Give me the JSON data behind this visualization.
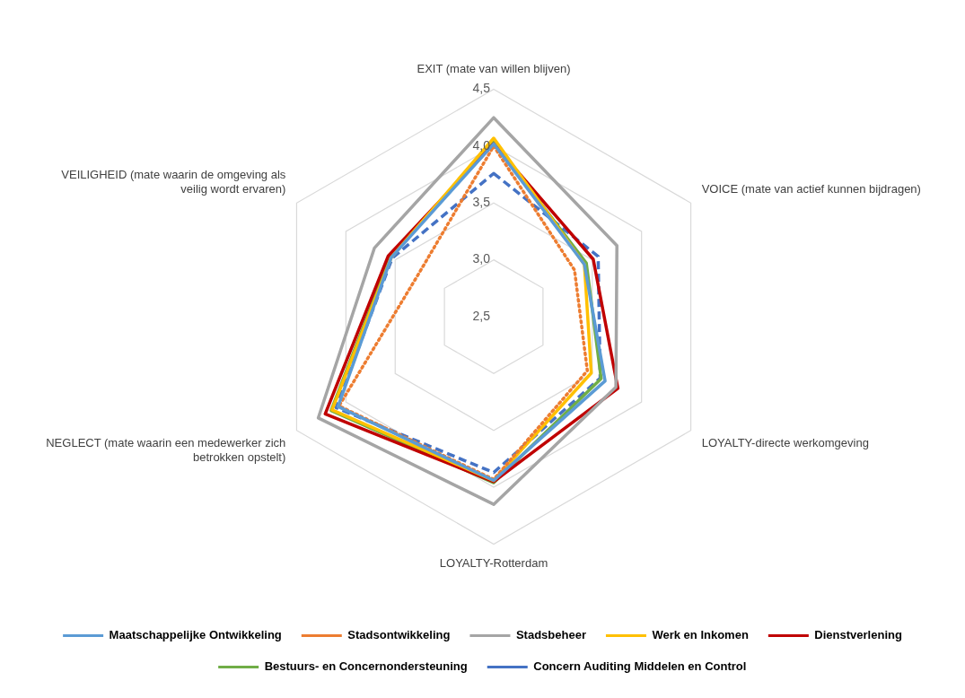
{
  "chart_data": {
    "type": "radar",
    "categories": [
      "EXIT (mate van willen blijven)",
      "VOICE (mate van actief kunnen bijdragen)",
      "LOYALTY-directe werkomgeving",
      "LOYALTY-Rotterdam",
      "NEGLECT (mate waarin een medewerker zich betrokken opstelt)",
      "VEILIGHEID (mate waarin de omgeving als veilig wordt ervaren)"
    ],
    "series": [
      {
        "name": "Maatschappelijke Ontwikkeling",
        "color": "#5b9bd5",
        "values": [
          4.02,
          3.42,
          3.63,
          3.94,
          4.08,
          3.54
        ]
      },
      {
        "name": "Stadsontwikkeling",
        "color": "#ed7d31",
        "line_style": "dotted",
        "values": [
          4.0,
          3.32,
          3.45,
          3.93,
          4.07,
          3.26
        ]
      },
      {
        "name": "Stadsbeheer",
        "color": "#a5a5a5",
        "values": [
          4.25,
          3.75,
          3.74,
          4.15,
          4.28,
          3.71
        ]
      },
      {
        "name": "Werk en Inkomen",
        "color": "#ffc000",
        "values": [
          4.07,
          3.42,
          3.49,
          3.94,
          4.14,
          3.54
        ]
      },
      {
        "name": "Dienstverlening",
        "color": "#c00000",
        "values": [
          4.02,
          3.51,
          3.76,
          3.95,
          4.21,
          3.57
        ]
      },
      {
        "name": "Bestuurs- en Concernondersteuning",
        "color": "#70ad47",
        "values": [
          4.04,
          3.44,
          3.59,
          3.96,
          4.15,
          3.55
        ]
      },
      {
        "name": "Concern Auditing Middelen en Control",
        "color": "#4472c4",
        "line_style": "dashed",
        "values": [
          3.76,
          3.56,
          3.58,
          3.87,
          4.1,
          3.53
        ]
      }
    ],
    "ylim": [
      2.5,
      4.5
    ],
    "yticks": [
      {
        "value": 2.5,
        "label": "2,5"
      },
      {
        "value": 3,
        "label": "3,0"
      },
      {
        "value": 3.5,
        "label": "3,5"
      },
      {
        "value": 4,
        "label": "4,0"
      },
      {
        "value": 4.5,
        "label": "4,5"
      }
    ],
    "grid": true,
    "legend": "bottom",
    "marker": "none",
    "line_style": "solid"
  }
}
